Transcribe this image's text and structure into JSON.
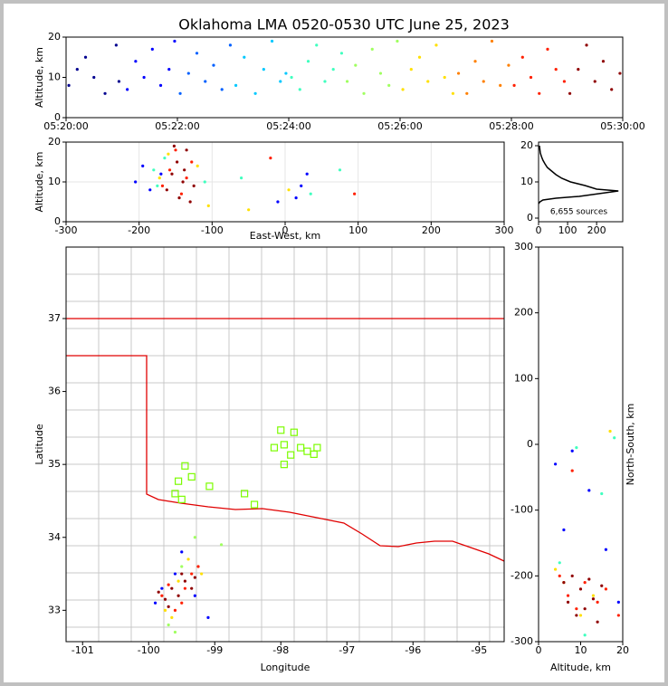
{
  "chart_data": [
    {
      "type": "scatter",
      "title": "Oklahoma LMA 0520-0530 UTC June 25, 2023",
      "ylabel": "Altitude, km",
      "xlim": [
        0,
        10
      ],
      "xticks": [
        {
          "value": 0,
          "label": "05:20:00"
        },
        {
          "value": 2,
          "label": "05:22:00"
        },
        {
          "value": 4,
          "label": "05:24:00"
        },
        {
          "value": 6,
          "label": "05:26:00"
        },
        {
          "value": 8,
          "label": "05:28:00"
        },
        {
          "value": 10,
          "label": "05:30:00"
        }
      ],
      "ylim": [
        0,
        20
      ],
      "yticks": [
        0,
        10,
        20
      ],
      "series": [
        {
          "color": "#00008f",
          "x": [
            0.05,
            0.2,
            0.35,
            0.5,
            0.7,
            0.9,
            0.95
          ],
          "values": [
            8,
            12,
            15,
            10,
            6,
            18,
            9
          ]
        },
        {
          "color": "#0000ff",
          "x": [
            1.1,
            1.25,
            1.4,
            1.55,
            1.7,
            1.85,
            1.95
          ],
          "values": [
            7,
            14,
            10,
            17,
            8,
            12,
            19
          ]
        },
        {
          "color": "#0060ff",
          "x": [
            2.05,
            2.2,
            2.35,
            2.5,
            2.65,
            2.8,
            2.95
          ],
          "values": [
            6,
            11,
            16,
            9,
            13,
            7,
            18
          ]
        },
        {
          "color": "#00c8ff",
          "x": [
            3.05,
            3.2,
            3.4,
            3.55,
            3.7,
            3.85,
            3.95
          ],
          "values": [
            8,
            15,
            6,
            12,
            19,
            9,
            11
          ]
        },
        {
          "color": "#40ffbf",
          "x": [
            4.05,
            4.2,
            4.35,
            4.5,
            4.65,
            4.8,
            4.95
          ],
          "values": [
            10,
            7,
            14,
            18,
            9,
            12,
            16
          ]
        },
        {
          "color": "#a0ff60",
          "x": [
            5.05,
            5.2,
            5.35,
            5.5,
            5.65,
            5.8,
            5.95
          ],
          "values": [
            9,
            13,
            6,
            17,
            11,
            8,
            19
          ]
        },
        {
          "color": "#ffe000",
          "x": [
            6.05,
            6.2,
            6.35,
            6.5,
            6.65,
            6.8,
            6.95
          ],
          "values": [
            7,
            12,
            15,
            9,
            18,
            10,
            6
          ]
        },
        {
          "color": "#ff8000",
          "x": [
            7.05,
            7.2,
            7.35,
            7.5,
            7.65,
            7.8,
            7.95
          ],
          "values": [
            11,
            6,
            14,
            9,
            19,
            8,
            13
          ]
        },
        {
          "color": "#ff2000",
          "x": [
            8.05,
            8.2,
            8.35,
            8.5,
            8.65,
            8.8,
            8.95
          ],
          "values": [
            8,
            15,
            10,
            6,
            17,
            12,
            9
          ]
        },
        {
          "color": "#8f0000",
          "x": [
            9.05,
            9.2,
            9.35,
            9.5,
            9.65,
            9.8,
            9.95
          ],
          "values": [
            6,
            12,
            18,
            9,
            14,
            7,
            11
          ]
        }
      ]
    },
    {
      "type": "scatter",
      "xlabel": "East-West, km",
      "ylabel": "Altitude, km",
      "grid": true,
      "xlim": [
        -300,
        300
      ],
      "xticks": [
        -300,
        -200,
        -100,
        0,
        100,
        200,
        300
      ],
      "ylim": [
        0,
        20
      ],
      "yticks": [
        0,
        10,
        20
      ],
      "series": [
        {
          "color": "#0000ff",
          "x": [
            -205,
            -195,
            -185,
            -170,
            15,
            22,
            30,
            -10
          ],
          "values": [
            10,
            14,
            8,
            12,
            6,
            9,
            12,
            5
          ]
        },
        {
          "color": "#40ffbf",
          "x": [
            -180,
            -175,
            -165,
            -110,
            35,
            75,
            -60
          ],
          "values": [
            13,
            9,
            16,
            10,
            7,
            13,
            11
          ]
        },
        {
          "color": "#ffe000",
          "x": [
            -172,
            -160,
            -120,
            -105,
            -50,
            5
          ],
          "values": [
            11,
            17,
            14,
            4,
            3,
            8
          ]
        },
        {
          "color": "#ff2000",
          "x": [
            -168,
            -158,
            -150,
            -142,
            -135,
            -128,
            -20,
            95
          ],
          "values": [
            9,
            13,
            18,
            7,
            11,
            15,
            16,
            7
          ]
        },
        {
          "color": "#8f0000",
          "x": [
            -162,
            -155,
            -148,
            -145,
            -140,
            -135,
            -130,
            -125,
            -152,
            -138
          ],
          "values": [
            8,
            12,
            15,
            6,
            10,
            18,
            5,
            9,
            19,
            13
          ]
        }
      ]
    },
    {
      "type": "line",
      "annotation": "6,655 sources",
      "xlim": [
        0,
        290
      ],
      "xticks": [
        0,
        100,
        200
      ],
      "ylim": [
        -1,
        21
      ],
      "yticks": [
        0,
        10,
        20
      ],
      "series": [
        {
          "color": "#000000",
          "x": [
            0,
            5,
            15,
            60,
            140,
            275,
            200,
            160,
            110,
            80,
            60,
            45,
            30,
            22,
            15,
            10,
            6,
            3
          ],
          "values": [
            4,
            4.5,
            5,
            5.5,
            6,
            7.5,
            8,
            9,
            10,
            11,
            12,
            13,
            14,
            15,
            16,
            17,
            18,
            20
          ]
        }
      ]
    },
    {
      "type": "scatter",
      "xlabel": "Longitude",
      "ylabel": "Latitude",
      "xlim": [
        -101.25,
        -94.62
      ],
      "xticks": [
        -101,
        -100,
        -99,
        -98,
        -97,
        -96,
        -95
      ],
      "ylim": [
        32.57,
        37.98
      ],
      "yticks": [
        33,
        34,
        35,
        36,
        37
      ],
      "series": [
        {
          "color": "#0000ff",
          "x": [
            -99.9,
            -99.6,
            -99.8,
            -99.5,
            -99.3,
            -99.1
          ],
          "values": [
            33.1,
            33.5,
            33.3,
            33.8,
            33.2,
            32.9
          ]
        },
        {
          "color": "#a0ff60",
          "x": [
            -99.7,
            -99.5,
            -99.3,
            -99.6,
            -98.9
          ],
          "values": [
            32.8,
            33.6,
            34.0,
            32.7,
            33.9
          ]
        },
        {
          "color": "#ffe000",
          "x": [
            -99.75,
            -99.55,
            -99.4,
            -99.65,
            -99.2
          ],
          "values": [
            33.0,
            33.4,
            33.7,
            32.9,
            33.5
          ]
        },
        {
          "color": "#ff2000",
          "x": [
            -99.8,
            -99.7,
            -99.5,
            -99.35,
            -99.25,
            -99.6,
            -99.45
          ],
          "values": [
            33.2,
            33.35,
            33.1,
            33.5,
            33.6,
            33.0,
            33.3
          ]
        },
        {
          "color": "#8f0000",
          "x": [
            -99.85,
            -99.75,
            -99.65,
            -99.55,
            -99.45,
            -99.35,
            -99.3,
            -99.7,
            -99.5
          ],
          "values": [
            33.25,
            33.15,
            33.3,
            33.2,
            33.4,
            33.3,
            33.45,
            33.05,
            33.5
          ]
        },
        {
          "color": "#7cfc00",
          "marker": "square",
          "x": [
            -98.0,
            -97.8,
            -98.1,
            -97.95,
            -97.7,
            -97.6,
            -97.45,
            -97.85,
            -98.55,
            -99.55,
            -99.35,
            -99.45,
            -99.6,
            -99.5,
            -99.08,
            -98.4,
            -97.5,
            -97.95
          ],
          "values": [
            35.47,
            35.44,
            35.23,
            35.27,
            35.23,
            35.18,
            35.23,
            35.13,
            34.6,
            34.77,
            34.83,
            34.98,
            34.6,
            34.52,
            34.7,
            34.45,
            35.14,
            35.0
          ]
        }
      ]
    },
    {
      "type": "scatter",
      "xlabel": "Altitude, km",
      "ylabel": "North-South, km",
      "xlim": [
        0,
        20
      ],
      "xticks": [
        0,
        10,
        20
      ],
      "ylim": [
        -300,
        300
      ],
      "yticks": [
        -300,
        -200,
        -100,
        0,
        100,
        200,
        300
      ],
      "series": [
        {
          "color": "#0000ff",
          "x": [
            4,
            8,
            12,
            16,
            19,
            6
          ],
          "values": [
            -30,
            -10,
            -70,
            -160,
            -240,
            -130
          ]
        },
        {
          "color": "#40ffbf",
          "x": [
            5,
            9,
            15,
            18,
            11
          ],
          "values": [
            -180,
            -5,
            -75,
            10,
            -290
          ]
        },
        {
          "color": "#ffe000",
          "x": [
            6,
            10,
            13,
            17,
            4
          ],
          "values": [
            -210,
            -260,
            -230,
            20,
            -190
          ]
        },
        {
          "color": "#ff2000",
          "x": [
            5,
            7,
            9,
            11,
            14,
            16,
            19,
            8
          ],
          "values": [
            -200,
            -230,
            -250,
            -210,
            -240,
            -220,
            -260,
            -40
          ]
        },
        {
          "color": "#8f0000",
          "x": [
            6,
            7,
            8,
            9,
            10,
            11,
            12,
            13,
            14,
            15
          ],
          "values": [
            -210,
            -240,
            -200,
            -260,
            -220,
            -250,
            -205,
            -235,
            -270,
            -215
          ]
        }
      ]
    }
  ]
}
